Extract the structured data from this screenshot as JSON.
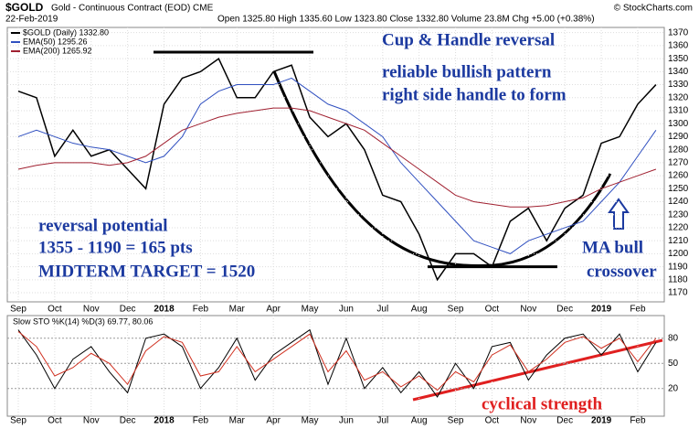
{
  "chart_data": [
    {
      "type": "line",
      "symbol": "$GOLD",
      "name": "Gold - Continuous Contract (EOD) CME",
      "date": "22-Feb-2019",
      "quote": "Open 1325.80 High 1335.60 Low 1323.80 Close 1332.80 Volume 23.8M Chg +5.00 (+0.38%)",
      "source": "© StockCharts.com",
      "categories": [
        "Sep",
        null,
        "Oct",
        null,
        "Nov",
        null,
        "Dec",
        null,
        "2018",
        null,
        "Feb",
        null,
        "Mar",
        null,
        "Apr",
        null,
        "May",
        null,
        "Jun",
        null,
        "Jul",
        null,
        "Aug",
        null,
        "Sep",
        null,
        "Oct",
        null,
        "Nov",
        null,
        "Dec",
        null,
        "2019",
        null,
        "Feb",
        null
      ],
      "series": [
        {
          "name": "$GOLD (Daily) 1332.80",
          "color": "#000000",
          "values": [
            1325,
            1320,
            1275,
            1295,
            1275,
            1280,
            1265,
            1250,
            1315,
            1335,
            1340,
            1350,
            1320,
            1320,
            1340,
            1345,
            1305,
            1290,
            1300,
            1280,
            1245,
            1240,
            1215,
            1180,
            1200,
            1200,
            1190,
            1225,
            1235,
            1210,
            1235,
            1245,
            1285,
            1290,
            1315,
            1330
          ]
        },
        {
          "name": "EMA(50) 1295.26",
          "color": "#3050c0",
          "values": [
            1290,
            1295,
            1290,
            1285,
            1282,
            1280,
            1275,
            1270,
            1275,
            1290,
            1315,
            1325,
            1330,
            1330,
            1330,
            1335,
            1325,
            1315,
            1310,
            1300,
            1290,
            1270,
            1255,
            1240,
            1225,
            1210,
            1205,
            1200,
            1210,
            1215,
            1220,
            1225,
            1240,
            1255,
            1275,
            1295
          ]
        },
        {
          "name": "EMA(200) 1265.92",
          "color": "#a02030",
          "values": [
            1265,
            1268,
            1270,
            1270,
            1270,
            1268,
            1270,
            1275,
            1285,
            1295,
            1300,
            1305,
            1308,
            1310,
            1312,
            1312,
            1310,
            1305,
            1300,
            1295,
            1285,
            1275,
            1265,
            1255,
            1245,
            1240,
            1238,
            1236,
            1236,
            1237,
            1240,
            1243,
            1250,
            1255,
            1260,
            1265
          ]
        }
      ],
      "ylim": [
        1163,
        1374
      ],
      "yticks": [
        1170,
        1180,
        1190,
        1200,
        1210,
        1220,
        1230,
        1240,
        1250,
        1260,
        1270,
        1280,
        1290,
        1300,
        1310,
        1320,
        1330,
        1340,
        1350,
        1360,
        1370
      ],
      "grid": true,
      "resistance": 1355,
      "support": 1190,
      "annotations": [
        "Cup & Handle reversal",
        "reliable bullish pattern",
        "right side handle to form",
        "reversal potential",
        "1355 - 1190 = 165 pts",
        "MIDTERM TARGET  = 1520",
        "MA bull",
        "crossover"
      ]
    },
    {
      "type": "line",
      "title": "Slow STO %K(14) %D(3) 69.77, 80.06",
      "categories": [
        "Sep",
        null,
        "Oct",
        null,
        "Nov",
        null,
        "Dec",
        null,
        "2018",
        null,
        "Feb",
        null,
        "Mar",
        null,
        "Apr",
        null,
        "May",
        null,
        "Jun",
        null,
        "Jul",
        null,
        "Aug",
        null,
        "Sep",
        null,
        "Oct",
        null,
        "Nov",
        null,
        "Dec",
        null,
        "2019",
        null,
        "Feb",
        null
      ],
      "series": [
        {
          "color": "#000000",
          "values": [
            90,
            60,
            20,
            55,
            70,
            40,
            15,
            80,
            85,
            70,
            20,
            45,
            80,
            30,
            60,
            75,
            90,
            25,
            80,
            20,
            45,
            15,
            40,
            10,
            50,
            20,
            70,
            75,
            30,
            60,
            80,
            85,
            60,
            85,
            40,
            75
          ]
        },
        {
          "color": "#d03020",
          "values": [
            88,
            70,
            35,
            45,
            62,
            50,
            25,
            65,
            82,
            75,
            35,
            40,
            70,
            40,
            55,
            70,
            85,
            40,
            65,
            30,
            40,
            22,
            35,
            18,
            40,
            28,
            60,
            72,
            40,
            55,
            75,
            82,
            68,
            80,
            52,
            80
          ]
        }
      ],
      "ylim": [
        -13,
        107
      ],
      "yticks": [
        20,
        50,
        80
      ],
      "grid": true,
      "annotations": [
        "cyclical strength"
      ]
    }
  ]
}
